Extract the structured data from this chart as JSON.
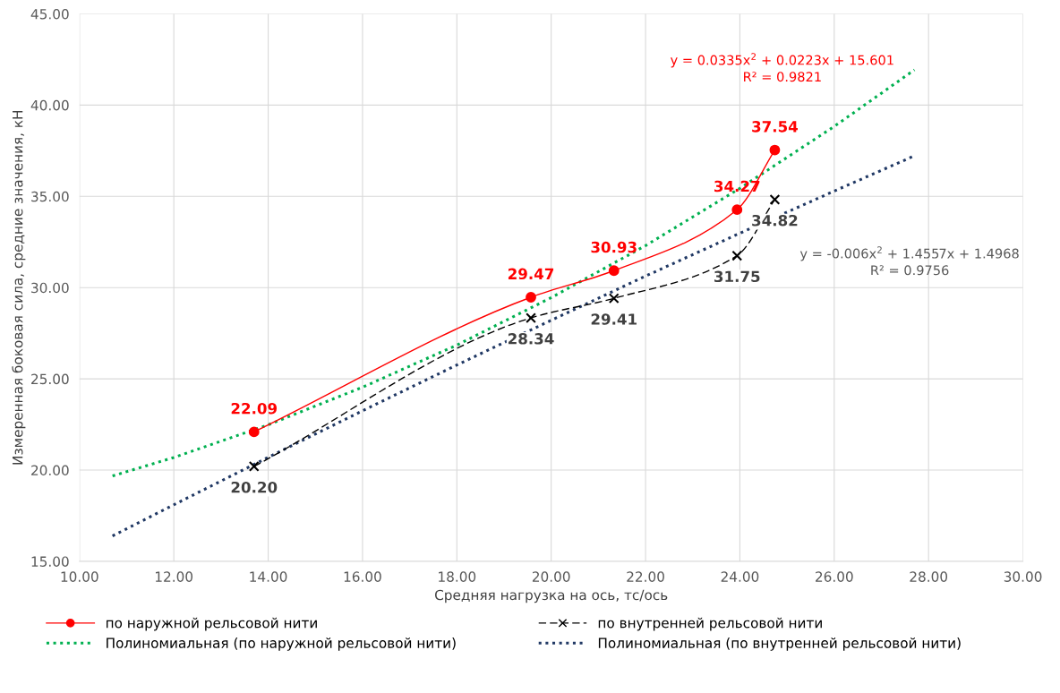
{
  "chart_data": {
    "type": "line",
    "xlabel": "Средняя нагрузка на ось, тс/ось",
    "ylabel": "Измеренная боковая сила, средние значения, кН",
    "xlim": [
      10,
      30
    ],
    "ylim": [
      15,
      45
    ],
    "xticks": [
      {
        "value": 10,
        "label": "10.00"
      },
      {
        "value": 12,
        "label": "12.00"
      },
      {
        "value": 14,
        "label": "14.00"
      },
      {
        "value": 16,
        "label": "16.00"
      },
      {
        "value": 18,
        "label": "18.00"
      },
      {
        "value": 20,
        "label": "20.00"
      },
      {
        "value": 22,
        "label": "22.00"
      },
      {
        "value": 24,
        "label": "24.00"
      },
      {
        "value": 26,
        "label": "26.00"
      },
      {
        "value": 28,
        "label": "28.00"
      },
      {
        "value": 30,
        "label": "30.00"
      }
    ],
    "yticks": [
      {
        "value": 15,
        "label": "15.00"
      },
      {
        "value": 20,
        "label": "20.00"
      },
      {
        "value": 25,
        "label": "25.00"
      },
      {
        "value": 30,
        "label": "30.00"
      },
      {
        "value": 35,
        "label": "35.00"
      },
      {
        "value": 40,
        "label": "40.00"
      },
      {
        "value": 45,
        "label": "45.00"
      }
    ],
    "grid": true,
    "legend": "bottom",
    "series": [
      {
        "name": "по наружной рельсовой нити",
        "color": "#ff0000",
        "marker": "circle",
        "line_style": "solid",
        "x": [
          13.7,
          19.57,
          21.33,
          23.94,
          24.74
        ],
        "values": [
          22.09,
          29.47,
          30.93,
          34.27,
          37.54
        ],
        "value_labels": [
          "22.09",
          "29.47",
          "30.93",
          "34.27",
          "37.54"
        ]
      },
      {
        "name": "по внутренней рельсовой нити",
        "color": "#000000",
        "marker": "cross",
        "line_style": "dashed",
        "x": [
          13.7,
          19.57,
          21.33,
          23.94,
          24.74
        ],
        "values": [
          20.2,
          28.34,
          29.41,
          31.75,
          34.82
        ],
        "value_labels": [
          "20.20",
          "28.34",
          "29.41",
          "31.75",
          "34.82"
        ]
      },
      {
        "name": "Полиномиальная (по наружной рельсовой нити)",
        "color": "#00b050",
        "marker": "none",
        "line_style": "dotted",
        "x": [
          10.7,
          12,
          14,
          16,
          18,
          20,
          22,
          24,
          26,
          27.7
        ],
        "values": [
          19.68,
          20.69,
          22.48,
          24.54,
          26.85,
          29.45,
          32.3,
          35.44,
          38.83,
          41.93
        ]
      },
      {
        "name": "Полиномиальная (по внутренней рельсовой нити)",
        "color": "#203864",
        "marker": "none",
        "line_style": "dotted",
        "x": [
          10.7,
          12,
          14,
          16,
          18,
          20,
          22,
          24,
          26,
          27.7
        ],
        "values": [
          16.39,
          18.1,
          20.7,
          23.25,
          25.76,
          28.21,
          30.63,
          32.98,
          35.29,
          37.22
        ]
      }
    ],
    "annotations": [
      "y = 0.0335x$^{2}$ + 0.0223x + 15.601\nR² = 0.9821",
      "y = -0.006x$^{2}$ + 1.4557x + 1.4968\nR² = 0.9756"
    ]
  }
}
